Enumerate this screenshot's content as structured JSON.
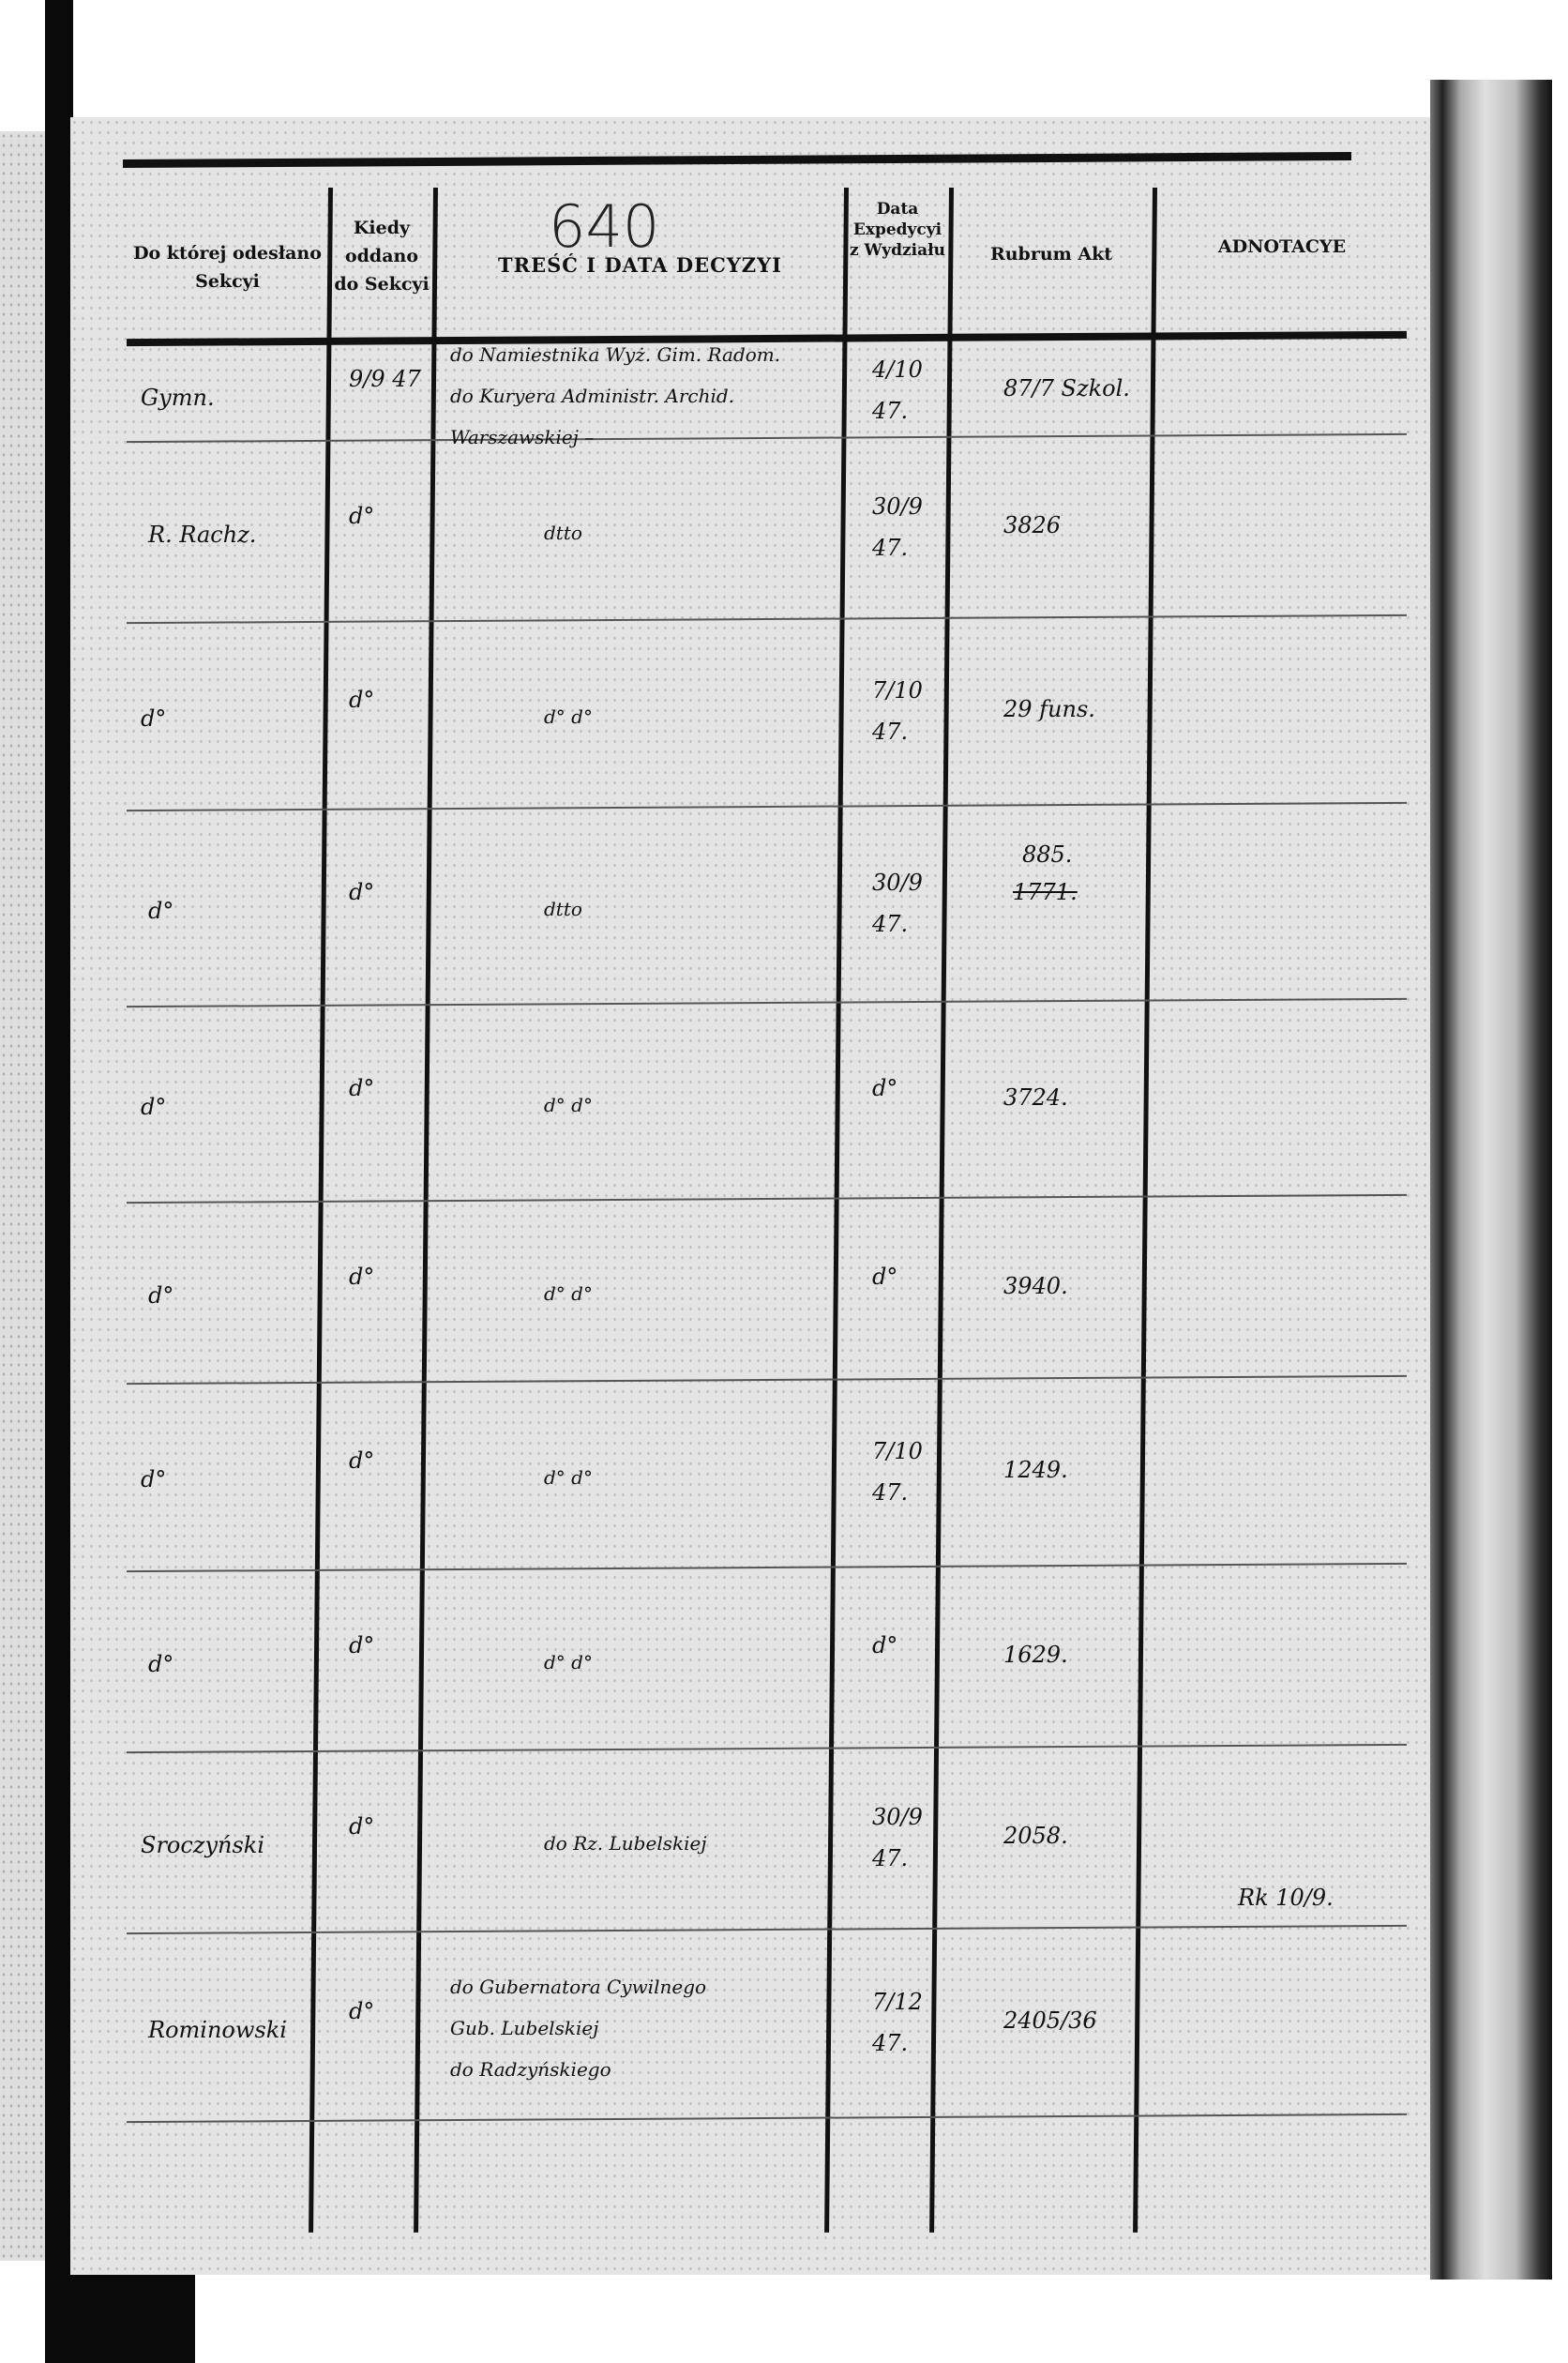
{
  "page_number": "640",
  "headers": {
    "sekcja": "Do której odesłano Sekcyi",
    "kiedy": "Kiedy oddano do Sekcyi",
    "tresc": "TREŚĆ I DATA DECYZYI",
    "data": "Data Expedycyi z Wydziału",
    "rubrum": "Rubrum Akt",
    "adnotacye": "ADNOTACYE"
  },
  "rows": [
    {
      "sekcja": "Gymn.",
      "kiedy": "9/9 47",
      "tresc": [
        "do Namiestnika Wyż. Gim. Radom.",
        "do Kuryera Administr. Archid.",
        "Warszawskiej –"
      ],
      "data": "4/10 47.",
      "rubrum": "87/7 Szkol.",
      "adnotacye": ""
    },
    {
      "sekcja": "R. Rachz.",
      "kiedy": "d°",
      "tresc": [
        "dtto"
      ],
      "data": "30/9 47.",
      "rubrum": "3826",
      "adnotacye": ""
    },
    {
      "sekcja": "d°",
      "kiedy": "d°",
      "tresc": [
        "d°   d°"
      ],
      "data": "7/10 47.",
      "rubrum": "29 funs.",
      "adnotacye": ""
    },
    {
      "sekcja": "d°",
      "kiedy": "d°",
      "tresc": [
        "dtto"
      ],
      "data": "30/9 47.",
      "rubrum": "885.",
      "rubrum_struck": "1771.",
      "adnotacye": ""
    },
    {
      "sekcja": "d°",
      "kiedy": "d°",
      "tresc": [
        "d°   d°"
      ],
      "data": "d°",
      "rubrum": "3724.",
      "adnotacye": ""
    },
    {
      "sekcja": "d°",
      "kiedy": "d°",
      "tresc": [
        "d°   d°"
      ],
      "data": "d°",
      "rubrum": "3940.",
      "adnotacye": ""
    },
    {
      "sekcja": "d°",
      "kiedy": "d°",
      "tresc": [
        "d°   d°"
      ],
      "data": "7/10 47.",
      "rubrum": "1249.",
      "adnotacye": ""
    },
    {
      "sekcja": "d°",
      "kiedy": "d°",
      "tresc": [
        "d°   d°"
      ],
      "data": "d°",
      "rubrum": "1629.",
      "adnotacye": ""
    },
    {
      "sekcja": "Sroczyński",
      "kiedy": "d°",
      "tresc": [
        "do Rz. Lubelskiej"
      ],
      "data": "30/9 47.",
      "rubrum": "2058.",
      "adnotacye": ""
    },
    {
      "sekcja": "Rominowski",
      "kiedy": "d°",
      "tresc": [
        "do Gubernatora Cywilnego",
        "Gub. Lubelskiej",
        "do Radzyńskiego"
      ],
      "data": "7/12 47.",
      "rubrum": "2405/36",
      "adnotacye": "Rk 10/9."
    }
  ]
}
